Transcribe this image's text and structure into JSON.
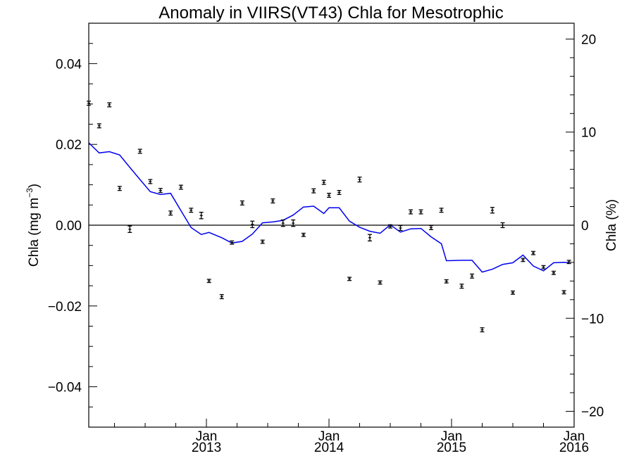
{
  "chart_data": {
    "type": "scatter",
    "title": "Anomaly in VIIRS(VT43) Chla for Mesotrophic",
    "ylabel_left": {
      "text": "Chla (mg m",
      "sup": "−3",
      "suffix": ")"
    },
    "ylabel_right": "Chla (%)",
    "xlim": [
      2012.04,
      2016.0
    ],
    "ylim_left": [
      -0.05,
      0.05
    ],
    "ylim_right": [
      -21.7,
      21.7
    ],
    "x_major_ticks": [
      {
        "x": 2013.0,
        "label_top": "Jan",
        "label_bottom": "2013"
      },
      {
        "x": 2014.0,
        "label_top": "Jan",
        "label_bottom": "2014"
      },
      {
        "x": 2015.0,
        "label_top": "Jan",
        "label_bottom": "2015"
      },
      {
        "x": 2016.0,
        "label_top": "Jan",
        "label_bottom": "2016"
      }
    ],
    "y_left_ticks": [
      {
        "v": 0.04,
        "label": "0.04"
      },
      {
        "v": 0.02,
        "label": "0.02"
      },
      {
        "v": 0.0,
        "label": "0.00"
      },
      {
        "v": -0.02,
        "label": "−0.02"
      },
      {
        "v": -0.04,
        "label": "−0.04"
      }
    ],
    "y_right_ticks": [
      {
        "v": 20,
        "label": "20"
      },
      {
        "v": 10,
        "label": "10"
      },
      {
        "v": 0,
        "label": "0"
      },
      {
        "v": -10,
        "label": "−10"
      },
      {
        "v": -20,
        "label": "−20"
      }
    ],
    "zero_line": 0,
    "series": [
      {
        "kind": "points_with_errorbars",
        "color": "#000000",
        "points": [
          {
            "x": 2012.04,
            "y": 0.0302,
            "err": 0.0005
          },
          {
            "x": 2012.125,
            "y": 0.0246,
            "err": 0.0005
          },
          {
            "x": 2012.208,
            "y": 0.0298,
            "err": 0.0005
          },
          {
            "x": 2012.292,
            "y": 0.0091,
            "err": 0.0005
          },
          {
            "x": 2012.375,
            "y": -0.001,
            "err": 0.0008
          },
          {
            "x": 2012.458,
            "y": 0.0183,
            "err": 0.0005
          },
          {
            "x": 2012.542,
            "y": 0.0108,
            "err": 0.0005
          },
          {
            "x": 2012.625,
            "y": 0.0086,
            "err": 0.0005
          },
          {
            "x": 2012.708,
            "y": 0.003,
            "err": 0.0005
          },
          {
            "x": 2012.792,
            "y": 0.0094,
            "err": 0.0005
          },
          {
            "x": 2012.875,
            "y": 0.0037,
            "err": 0.0005
          },
          {
            "x": 2012.958,
            "y": 0.0024,
            "err": 0.0008
          },
          {
            "x": 2013.021,
            "y": -0.0138,
            "err": 0.0004
          },
          {
            "x": 2013.125,
            "y": -0.0177,
            "err": 0.0005
          },
          {
            "x": 2013.208,
            "y": -0.0043,
            "err": 0.0004
          },
          {
            "x": 2013.292,
            "y": 0.0055,
            "err": 0.0005
          },
          {
            "x": 2013.375,
            "y": 0.0002,
            "err": 0.0008
          },
          {
            "x": 2013.458,
            "y": -0.0041,
            "err": 0.0004
          },
          {
            "x": 2013.542,
            "y": 0.006,
            "err": 0.0005
          },
          {
            "x": 2013.625,
            "y": 0.0005,
            "err": 0.0008
          },
          {
            "x": 2013.708,
            "y": 0.0005,
            "err": 0.0008
          },
          {
            "x": 2013.792,
            "y": -0.0024,
            "err": 0.0004
          },
          {
            "x": 2013.875,
            "y": 0.0085,
            "err": 0.0005
          },
          {
            "x": 2013.958,
            "y": 0.0106,
            "err": 0.0005
          },
          {
            "x": 2014.0,
            "y": 0.0074,
            "err": 0.0005
          },
          {
            "x": 2014.083,
            "y": 0.0081,
            "err": 0.0005
          },
          {
            "x": 2014.167,
            "y": -0.0133,
            "err": 0.0004
          },
          {
            "x": 2014.25,
            "y": 0.0113,
            "err": 0.0006
          },
          {
            "x": 2014.333,
            "y": -0.0031,
            "err": 0.0008
          },
          {
            "x": 2014.417,
            "y": -0.0142,
            "err": 0.0004
          },
          {
            "x": 2014.5,
            "y": -0.0003,
            "err": 0.0004
          },
          {
            "x": 2014.583,
            "y": -0.0007,
            "err": 0.0006
          },
          {
            "x": 2014.667,
            "y": 0.0033,
            "err": 0.0005
          },
          {
            "x": 2014.75,
            "y": 0.0033,
            "err": 0.0005
          },
          {
            "x": 2014.833,
            "y": -0.0006,
            "err": 0.0005
          },
          {
            "x": 2014.917,
            "y": 0.0037,
            "err": 0.0005
          },
          {
            "x": 2014.958,
            "y": -0.0139,
            "err": 0.0004
          },
          {
            "x": 2015.083,
            "y": -0.0151,
            "err": 0.0005
          },
          {
            "x": 2015.167,
            "y": -0.0126,
            "err": 0.0005
          },
          {
            "x": 2015.25,
            "y": -0.0259,
            "err": 0.0005
          },
          {
            "x": 2015.333,
            "y": 0.0037,
            "err": 0.0007
          },
          {
            "x": 2015.417,
            "y": 0.0,
            "err": 0.0006
          },
          {
            "x": 2015.5,
            "y": -0.0167,
            "err": 0.0004
          },
          {
            "x": 2015.583,
            "y": -0.0086,
            "err": 0.0004
          },
          {
            "x": 2015.667,
            "y": -0.0069,
            "err": 0.0004
          },
          {
            "x": 2015.75,
            "y": -0.0104,
            "err": 0.0004
          },
          {
            "x": 2015.833,
            "y": -0.0118,
            "err": 0.0004
          },
          {
            "x": 2015.917,
            "y": -0.0166,
            "err": 0.0004
          },
          {
            "x": 2015.958,
            "y": -0.0091,
            "err": 0.0004
          }
        ]
      },
      {
        "kind": "line",
        "color": "#0000ee",
        "points": [
          [
            2012.04,
            0.0204
          ],
          [
            2012.125,
            0.0179
          ],
          [
            2012.208,
            0.0182
          ],
          [
            2012.292,
            0.0174
          ],
          [
            2012.375,
            0.0143
          ],
          [
            2012.458,
            0.0113
          ],
          [
            2012.542,
            0.0083
          ],
          [
            2012.625,
            0.0076
          ],
          [
            2012.708,
            0.0079
          ],
          [
            2012.792,
            0.0036
          ],
          [
            2012.875,
            -0.0006
          ],
          [
            2012.958,
            -0.0023
          ],
          [
            2013.021,
            -0.0018
          ],
          [
            2013.125,
            -0.0031
          ],
          [
            2013.208,
            -0.0044
          ],
          [
            2013.292,
            -0.004
          ],
          [
            2013.375,
            -0.0022
          ],
          [
            2013.458,
            0.0006
          ],
          [
            2013.542,
            0.0008
          ],
          [
            2013.625,
            0.0012
          ],
          [
            2013.708,
            0.0025
          ],
          [
            2013.792,
            0.0045
          ],
          [
            2013.875,
            0.0047
          ],
          [
            2013.958,
            0.0029
          ],
          [
            2014.0,
            0.0043
          ],
          [
            2014.083,
            0.0043
          ],
          [
            2014.167,
            0.001
          ],
          [
            2014.25,
            -0.0005
          ],
          [
            2014.333,
            -0.0015
          ],
          [
            2014.417,
            -0.002
          ],
          [
            2014.5,
            0.0001
          ],
          [
            2014.583,
            -0.0017
          ],
          [
            2014.667,
            -0.0009
          ],
          [
            2014.75,
            -0.0008
          ],
          [
            2014.833,
            -0.0029
          ],
          [
            2014.917,
            -0.0046
          ],
          [
            2014.958,
            -0.0088
          ],
          [
            2015.083,
            -0.0087
          ],
          [
            2015.167,
            -0.0087
          ],
          [
            2015.25,
            -0.0116
          ],
          [
            2015.333,
            -0.0109
          ],
          [
            2015.417,
            -0.0097
          ],
          [
            2015.5,
            -0.0093
          ],
          [
            2015.583,
            -0.0074
          ],
          [
            2015.667,
            -0.0101
          ],
          [
            2015.75,
            -0.0113
          ],
          [
            2015.833,
            -0.0093
          ],
          [
            2015.917,
            -0.0092
          ],
          [
            2015.958,
            -0.0093
          ]
        ]
      }
    ],
    "grid": false,
    "legend": "none"
  }
}
